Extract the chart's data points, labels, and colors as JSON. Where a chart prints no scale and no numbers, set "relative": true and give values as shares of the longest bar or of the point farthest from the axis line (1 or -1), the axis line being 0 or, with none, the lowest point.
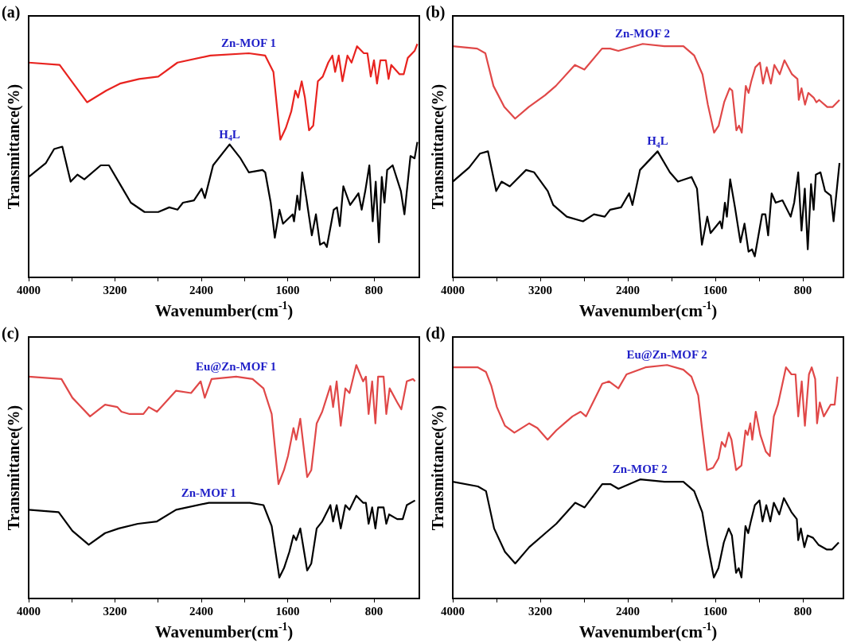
{
  "chart_data": [
    {
      "type": "line",
      "title": "(a)",
      "xlabel": "Wavenumber(cm$^{-1}$)",
      "ylabel": "Transmittance(%)",
      "relative": true,
      "tick_labels": "x",
      "legend": false,
      "xlim": [
        4000,
        380
      ],
      "xticks": [
        4000,
        {
          "value": 3600,
          "label": null
        },
        3200,
        {
          "value": 2800,
          "label": null
        },
        2400,
        {
          "value": 2000,
          "label": null
        },
        1600,
        {
          "value": 1200,
          "label": null
        },
        800
      ],
      "series": [
        {
          "name": "Zn-MOF 1",
          "color": "#e8231f",
          "x": [
            4000,
            3713,
            3586,
            3459,
            3281,
            3154,
            2976,
            2799,
            2621,
            2316,
            1960,
            1808,
            1732,
            1668,
            1617,
            1567,
            1529,
            1503,
            1470,
            1440,
            1402,
            1363,
            1320,
            1275,
            1224,
            1186,
            1160,
            1127,
            1092,
            1046,
            1008,
            957,
            894,
            861,
            830,
            800,
            772,
            741,
            690,
            665,
            640,
            563,
            525,
            487,
            424,
            398
          ],
          "values": [
            0.92,
            0.91,
            0.83,
            0.75,
            0.8,
            0.83,
            0.85,
            0.86,
            0.92,
            0.95,
            0.96,
            0.95,
            0.88,
            0.59,
            0.64,
            0.71,
            0.8,
            0.77,
            0.84,
            0.77,
            0.63,
            0.65,
            0.84,
            0.86,
            0.92,
            0.95,
            0.88,
            0.95,
            0.84,
            0.95,
            0.92,
            0.99,
            0.96,
            0.96,
            0.86,
            0.93,
            0.83,
            0.93,
            0.93,
            0.85,
            0.91,
            0.87,
            0.87,
            0.94,
            0.97,
            1.0
          ]
        },
        {
          "name": "H$_{4}$L",
          "color": "#000000",
          "x": [
            4000,
            3840,
            3764,
            3688,
            3611,
            3548,
            3484,
            3332,
            3256,
            3129,
            3053,
            2926,
            2799,
            2697,
            2621,
            2570,
            2468,
            2397,
            2367,
            2291,
            2138,
            2037,
            1960,
            1833,
            1808,
            1757,
            1719,
            1676,
            1643,
            1554,
            1541,
            1511,
            1490,
            1465,
            1427,
            1376,
            1338,
            1300,
            1262,
            1237,
            1173,
            1143,
            1117,
            1084,
            1021,
            944,
            914,
            881,
            843,
            812,
            784,
            754,
            728,
            703,
            678,
            627,
            551,
            518,
            462,
            424,
            398
          ],
          "values": [
            0.43,
            0.49,
            0.55,
            0.56,
            0.41,
            0.44,
            0.42,
            0.48,
            0.48,
            0.38,
            0.32,
            0.28,
            0.28,
            0.3,
            0.29,
            0.32,
            0.33,
            0.38,
            0.34,
            0.48,
            0.57,
            0.51,
            0.45,
            0.46,
            0.45,
            0.32,
            0.17,
            0.29,
            0.23,
            0.27,
            0.24,
            0.35,
            0.29,
            0.45,
            0.34,
            0.18,
            0.27,
            0.14,
            0.15,
            0.13,
            0.29,
            0.3,
            0.22,
            0.39,
            0.31,
            0.36,
            0.29,
            0.37,
            0.48,
            0.24,
            0.41,
            0.15,
            0.43,
            0.32,
            0.46,
            0.48,
            0.37,
            0.27,
            0.52,
            0.51,
            0.58
          ]
        }
      ]
    },
    {
      "type": "line",
      "title": "(b)",
      "xlabel": "Wavenumber(cm$^{-1}$)",
      "ylabel": "Transmittance(%)",
      "relative": true,
      "tick_labels": "x",
      "legend": false,
      "xlim": [
        4000,
        430
      ],
      "xticks": [
        4000,
        {
          "value": 3600,
          "label": null
        },
        3200,
        {
          "value": 2800,
          "label": null
        },
        2400,
        {
          "value": 2000,
          "label": null
        },
        1600,
        {
          "value": 1200,
          "label": null
        },
        800
      ],
      "series": [
        {
          "name": "Zn-MOF 2",
          "color": "#e04848",
          "x": [
            4000,
            3777,
            3702,
            3628,
            3529,
            3430,
            3306,
            3157,
            3058,
            2884,
            2797,
            2636,
            2562,
            2487,
            2264,
            2066,
            1892,
            1793,
            1718,
            1669,
            1612,
            1570,
            1520,
            1470,
            1446,
            1408,
            1384,
            1359,
            1322,
            1297,
            1272,
            1235,
            1193,
            1165,
            1131,
            1093,
            1061,
            1012,
            969,
            900,
            850,
            838,
            813,
            781,
            751,
            702,
            677,
            652,
            578,
            528,
            466
          ],
          "values": [
            0.99,
            0.98,
            0.96,
            0.82,
            0.73,
            0.68,
            0.73,
            0.78,
            0.82,
            0.91,
            0.89,
            0.98,
            0.98,
            0.97,
            1.0,
            0.99,
            0.99,
            0.95,
            0.87,
            0.74,
            0.62,
            0.65,
            0.75,
            0.81,
            0.8,
            0.63,
            0.65,
            0.62,
            0.82,
            0.79,
            0.84,
            0.9,
            0.92,
            0.83,
            0.9,
            0.83,
            0.91,
            0.87,
            0.93,
            0.87,
            0.85,
            0.76,
            0.81,
            0.74,
            0.79,
            0.77,
            0.75,
            0.76,
            0.73,
            0.73,
            0.76
          ]
        },
        {
          "name": "H$_{4}$L",
          "color": "#000000",
          "x": [
            4000,
            3851,
            3752,
            3678,
            3603,
            3554,
            3479,
            3330,
            3256,
            3132,
            3082,
            2958,
            2810,
            2710,
            2611,
            2562,
            2462,
            2388,
            2358,
            2289,
            2128,
            2016,
            1942,
            1818,
            1768,
            1723,
            1674,
            1644,
            1557,
            1540,
            1513,
            1495,
            1465,
            1421,
            1371,
            1334,
            1297,
            1265,
            1240,
            1173,
            1143,
            1118,
            1086,
            1049,
            987,
            912,
            880,
            843,
            813,
            783,
            756,
            726,
            702,
            682,
            640,
            598,
            545,
            520,
            466
          ],
          "values": [
            0.41,
            0.47,
            0.53,
            0.54,
            0.37,
            0.41,
            0.39,
            0.46,
            0.45,
            0.37,
            0.31,
            0.26,
            0.24,
            0.27,
            0.26,
            0.29,
            0.3,
            0.36,
            0.31,
            0.46,
            0.54,
            0.45,
            0.41,
            0.43,
            0.38,
            0.14,
            0.26,
            0.19,
            0.24,
            0.21,
            0.32,
            0.26,
            0.42,
            0.3,
            0.15,
            0.23,
            0.11,
            0.12,
            0.09,
            0.27,
            0.27,
            0.18,
            0.36,
            0.32,
            0.33,
            0.26,
            0.32,
            0.45,
            0.2,
            0.38,
            0.12,
            0.4,
            0.29,
            0.44,
            0.45,
            0.37,
            0.35,
            0.24,
            0.49
          ]
        }
      ]
    },
    {
      "type": "line",
      "title": "(c)",
      "xlabel": "Wavenumber(cm$^{-1}$)",
      "ylabel": "Transmittance(%)",
      "relative": true,
      "tick_labels": "x",
      "legend": false,
      "xlim": [
        4000,
        380
      ],
      "xticks": [
        4000,
        {
          "value": 3600,
          "label": null
        },
        3200,
        {
          "value": 2800,
          "label": null
        },
        2400,
        {
          "value": 2000,
          "label": null
        },
        1600,
        {
          "value": 1200,
          "label": null
        },
        800
      ],
      "series": [
        {
          "name": "Eu@Zn-MOF 1",
          "color": "#e04848",
          "x": [
            4000,
            3696,
            3595,
            3431,
            3292,
            3178,
            3140,
            3064,
            2937,
            2887,
            2811,
            2634,
            2495,
            2406,
            2368,
            2305,
            2077,
            1925,
            1824,
            1748,
            1685,
            1634,
            1597,
            1546,
            1521,
            1483,
            1419,
            1381,
            1331,
            1280,
            1204,
            1179,
            1146,
            1108,
            1065,
            1027,
            964,
            901,
            875,
            850,
            817,
            787,
            762,
            711,
            686,
            655,
            585,
            547,
            496,
            438,
            420
          ],
          "values": [
            0.95,
            0.94,
            0.86,
            0.78,
            0.83,
            0.82,
            0.8,
            0.79,
            0.79,
            0.82,
            0.8,
            0.89,
            0.88,
            0.93,
            0.86,
            0.94,
            0.95,
            0.94,
            0.9,
            0.79,
            0.49,
            0.55,
            0.61,
            0.73,
            0.68,
            0.77,
            0.52,
            0.55,
            0.75,
            0.8,
            0.91,
            0.82,
            0.93,
            0.74,
            0.9,
            0.88,
            1.0,
            0.93,
            0.95,
            0.79,
            0.93,
            0.75,
            0.95,
            0.95,
            0.79,
            0.9,
            0.84,
            0.81,
            0.93,
            0.94,
            0.93
          ]
        },
        {
          "name": "Zn-MOF 1",
          "color": "#000000",
          "x": [
            4000,
            3722,
            3595,
            3443,
            3292,
            3165,
            2988,
            2811,
            2634,
            2330,
            1951,
            1824,
            1748,
            1677,
            1634,
            1584,
            1546,
            1521,
            1483,
            1419,
            1381,
            1331,
            1280,
            1204,
            1179,
            1146,
            1108,
            1065,
            1027,
            964,
            901,
            875,
            850,
            817,
            787,
            762,
            711,
            686,
            660,
            585,
            534,
            496,
            420
          ],
          "values": [
            0.38,
            0.37,
            0.29,
            0.23,
            0.28,
            0.3,
            0.32,
            0.33,
            0.38,
            0.41,
            0.41,
            0.4,
            0.31,
            0.09,
            0.13,
            0.2,
            0.27,
            0.25,
            0.3,
            0.12,
            0.15,
            0.3,
            0.33,
            0.4,
            0.33,
            0.4,
            0.3,
            0.4,
            0.38,
            0.44,
            0.41,
            0.41,
            0.32,
            0.39,
            0.3,
            0.39,
            0.39,
            0.32,
            0.36,
            0.34,
            0.34,
            0.4,
            0.42
          ]
        }
      ]
    },
    {
      "type": "line",
      "title": "(d)",
      "xlabel": "Wavenumber(cm$^{-1}$)",
      "ylabel": "Transmittance(%)",
      "relative": true,
      "tick_labels": "x",
      "legend": false,
      "xlim": [
        4000,
        430
      ],
      "xticks": [
        4000,
        {
          "value": 3600,
          "label": null
        },
        3200,
        {
          "value": 2800,
          "label": null
        },
        2400,
        {
          "value": 2000,
          "label": null
        },
        1600,
        {
          "value": 1200,
          "label": null
        },
        800
      ],
      "series": [
        {
          "name": "Eu@Zn-MOF 2",
          "color": "#e04848",
          "x": [
            4000,
            3770,
            3696,
            3647,
            3597,
            3523,
            3437,
            3301,
            3227,
            3133,
            3054,
            2980,
            2906,
            2832,
            2782,
            2634,
            2572,
            2486,
            2412,
            2239,
            2041,
            1893,
            1819,
            1757,
            1720,
            1676,
            1621,
            1572,
            1542,
            1510,
            1478,
            1453,
            1411,
            1362,
            1325,
            1305,
            1281,
            1263,
            1231,
            1189,
            1140,
            1103,
            1066,
            1029,
            955,
            905,
            868,
            843,
            811,
            782,
            745,
            720,
            688,
            671,
            646,
            609,
            547,
            510,
            485
          ],
          "values": [
            0.99,
            0.99,
            0.97,
            0.91,
            0.82,
            0.74,
            0.71,
            0.75,
            0.73,
            0.68,
            0.72,
            0.75,
            0.78,
            0.8,
            0.78,
            0.92,
            0.93,
            0.9,
            0.96,
            0.99,
            1.0,
            0.98,
            0.95,
            0.87,
            0.72,
            0.55,
            0.56,
            0.6,
            0.67,
            0.65,
            0.71,
            0.68,
            0.55,
            0.57,
            0.72,
            0.7,
            0.75,
            0.68,
            0.8,
            0.7,
            0.63,
            0.61,
            0.78,
            0.83,
            0.99,
            0.96,
            0.96,
            0.78,
            0.93,
            0.74,
            0.96,
            0.99,
            0.94,
            0.75,
            0.84,
            0.78,
            0.83,
            0.83,
            0.95
          ]
        },
        {
          "name": "Zn-MOF 2",
          "color": "#000000",
          "x": [
            4000,
            3770,
            3696,
            3622,
            3523,
            3429,
            3301,
            3153,
            3054,
            2881,
            2795,
            2634,
            2560,
            2486,
            2288,
            2066,
            1893,
            1794,
            1720,
            1671,
            1614,
            1572,
            1523,
            1478,
            1449,
            1411,
            1387,
            1362,
            1325,
            1300,
            1276,
            1239,
            1197,
            1169,
            1135,
            1098,
            1066,
            1016,
            974,
            905,
            856,
            843,
            819,
            787,
            757,
            708,
            658,
            584,
            534,
            473
          ],
          "values": [
            0.5,
            0.48,
            0.46,
            0.3,
            0.2,
            0.15,
            0.22,
            0.28,
            0.32,
            0.41,
            0.39,
            0.49,
            0.49,
            0.47,
            0.51,
            0.5,
            0.5,
            0.46,
            0.37,
            0.23,
            0.09,
            0.13,
            0.24,
            0.3,
            0.27,
            0.11,
            0.13,
            0.09,
            0.31,
            0.28,
            0.33,
            0.4,
            0.42,
            0.33,
            0.4,
            0.33,
            0.41,
            0.36,
            0.43,
            0.37,
            0.34,
            0.25,
            0.3,
            0.22,
            0.27,
            0.26,
            0.23,
            0.21,
            0.21,
            0.24
          ]
        }
      ]
    }
  ]
}
